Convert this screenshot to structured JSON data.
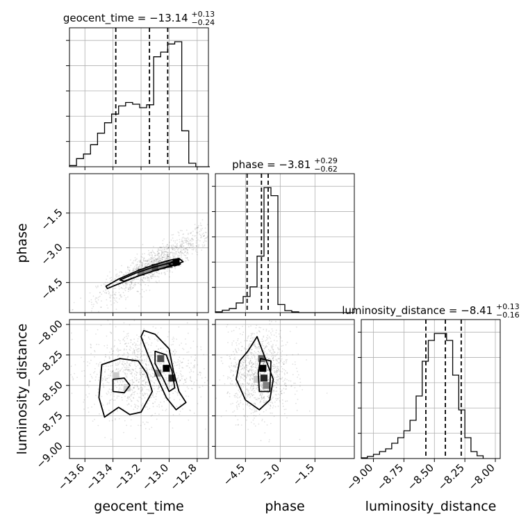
{
  "chart_data": {
    "type": "corner",
    "parameters": [
      "geocent_time",
      "phase",
      "luminosity_distance"
    ],
    "axis_labels": [
      "geocent_time",
      "phase",
      "luminosity_distance"
    ],
    "grid": true,
    "ranges": {
      "geocent_time": [
        -13.71,
        -12.72
      ],
      "phase": [
        -5.8,
        0.2
      ],
      "luminosity_distance": [
        -9.1,
        -7.96
      ]
    },
    "ticks": {
      "geocent_time": {
        "values": [
          -13.6,
          -13.4,
          -13.2,
          -13.0,
          -12.8
        ],
        "labels": [
          "−13.6",
          "−13.4",
          "−13.2",
          "−13.0",
          "−12.8"
        ]
      },
      "phase": {
        "values": [
          -4.5,
          -3.0,
          -1.5
        ],
        "labels": [
          "−4.5",
          "−3.0",
          "−1.5"
        ]
      },
      "luminosity_distance": {
        "values": [
          -9.0,
          -8.75,
          -8.5,
          -8.25,
          -8.0
        ],
        "labels": [
          "−9.00",
          "−8.75",
          "−8.50",
          "−8.25",
          "−8.00"
        ]
      }
    },
    "titles": [
      {
        "name": "geocent_time",
        "median": "−13.14",
        "plus": "+0.13",
        "minus": "−0.24"
      },
      {
        "name": "phase",
        "median": "−3.81",
        "plus": "+0.29",
        "minus": "−0.62"
      },
      {
        "name": "luminosity_distance",
        "median": "−8.41",
        "plus": "+0.13",
        "minus": "−0.16"
      }
    ],
    "quantiles": {
      "geocent_time": [
        -13.38,
        -13.14,
        -13.01
      ],
      "phase": [
        -4.43,
        -3.81,
        -3.52
      ],
      "luminosity_distance": [
        -8.57,
        -8.41,
        -8.28
      ]
    },
    "histograms": {
      "geocent_time": {
        "edges": [
          -13.71,
          -13.66,
          -13.61,
          -13.56,
          -13.51,
          -13.46,
          -13.41,
          -13.36,
          -13.31,
          -13.26,
          -13.21,
          -13.16,
          -13.11,
          -13.06,
          -13.01,
          -12.96,
          -12.91,
          -12.86,
          -12.81,
          -12.76,
          -12.71
        ],
        "counts": [
          2,
          14,
          22,
          38,
          58,
          76,
          91,
          105,
          111,
          108,
          102,
          107,
          190,
          198,
          212,
          216,
          62,
          6,
          0,
          0
        ]
      },
      "phase": {
        "edges": [
          -5.8,
          -5.5,
          -5.2,
          -4.9,
          -4.6,
          -4.3,
          -4.0,
          -3.7,
          -3.4,
          -3.1,
          -2.8,
          -2.5,
          -2.2,
          -1.9,
          -1.6,
          -1.3,
          -1.0,
          -0.7,
          -0.4,
          -0.1,
          0.2
        ],
        "counts": [
          2,
          6,
          10,
          24,
          40,
          64,
          140,
          310,
          290,
          20,
          5,
          2,
          0,
          0,
          0,
          0,
          0,
          0,
          0,
          0
        ]
      },
      "luminosity_distance": {
        "edges": [
          -9.1,
          -9.05,
          -9.0,
          -8.95,
          -8.9,
          -8.85,
          -8.8,
          -8.75,
          -8.7,
          -8.65,
          -8.6,
          -8.55,
          -8.5,
          -8.45,
          -8.4,
          -8.35,
          -8.3,
          -8.25,
          -8.2,
          -8.15,
          -8.1
        ],
        "counts": [
          1,
          3,
          6,
          10,
          14,
          22,
          30,
          40,
          55,
          90,
          140,
          170,
          180,
          180,
          170,
          120,
          70,
          30,
          10,
          4
        ]
      }
    },
    "pairs": [
      {
        "x": "geocent_time",
        "y": "phase",
        "scatter": {
          "x_range": [
            -13.7,
            -12.78
          ],
          "slope": 3.5,
          "center": [
            -13.1,
            -3.7
          ],
          "spread": 0.35
        },
        "contours": [
          [
            [
              -13.45,
              -4.66
            ],
            [
              -13.36,
              -4.35
            ],
            [
              -13.22,
              -3.98
            ],
            [
              -13.1,
              -3.72
            ],
            [
              -13.0,
              -3.54
            ],
            [
              -12.93,
              -3.46
            ],
            [
              -12.9,
              -3.6
            ],
            [
              -12.98,
              -3.78
            ],
            [
              -13.1,
              -3.98
            ],
            [
              -13.22,
              -4.22
            ],
            [
              -13.36,
              -4.56
            ],
            [
              -13.44,
              -4.76
            ]
          ],
          [
            [
              -13.35,
              -4.39
            ],
            [
              -13.24,
              -4.1
            ],
            [
              -13.12,
              -3.85
            ],
            [
              -13.0,
              -3.66
            ],
            [
              -12.94,
              -3.6
            ],
            [
              -12.96,
              -3.72
            ],
            [
              -13.1,
              -3.98
            ],
            [
              -13.22,
              -4.22
            ],
            [
              -13.32,
              -4.44
            ]
          ],
          [
            [
              -13.0,
              -3.72
            ],
            [
              -12.98,
              -3.6
            ],
            [
              -12.94,
              -3.6
            ],
            [
              -12.92,
              -3.7
            ],
            [
              -12.96,
              -3.78
            ]
          ]
        ],
        "hist2d": [
          {
            "x": -13.2,
            "y": -4.05,
            "density": 0.55
          },
          {
            "x": -13.15,
            "y": -3.95,
            "density": 0.45
          },
          {
            "x": -13.1,
            "y": -3.85,
            "density": 0.7
          },
          {
            "x": -13.05,
            "y": -3.78,
            "density": 0.5
          },
          {
            "x": -13.0,
            "y": -3.72,
            "density": 0.6
          },
          {
            "x": -12.95,
            "y": -3.62,
            "density": 1.0
          }
        ]
      },
      {
        "x": "geocent_time",
        "y": "luminosity_distance",
        "scatter": {
          "x_range": [
            -13.7,
            -12.78
          ],
          "slope": 0,
          "center": [
            -13.2,
            -8.4
          ],
          "spread": 0.18
        },
        "contours": [
          [
            [
              -13.48,
              -8.33
            ],
            [
              -13.35,
              -8.28
            ],
            [
              -13.22,
              -8.3
            ],
            [
              -13.16,
              -8.4
            ],
            [
              -13.12,
              -8.55
            ],
            [
              -13.2,
              -8.72
            ],
            [
              -13.28,
              -8.74
            ],
            [
              -13.36,
              -8.68
            ],
            [
              -13.46,
              -8.76
            ],
            [
              -13.5,
              -8.6
            ]
          ],
          [
            [
              -13.4,
              -8.45
            ],
            [
              -13.32,
              -8.44
            ],
            [
              -13.28,
              -8.5
            ],
            [
              -13.32,
              -8.56
            ],
            [
              -13.4,
              -8.55
            ]
          ],
          [
            [
              -13.18,
              -8.05
            ],
            [
              -13.1,
              -8.08
            ],
            [
              -13.0,
              -8.2
            ],
            [
              -12.97,
              -8.38
            ],
            [
              -12.93,
              -8.55
            ],
            [
              -12.88,
              -8.64
            ],
            [
              -12.95,
              -8.7
            ],
            [
              -13.02,
              -8.6
            ],
            [
              -13.08,
              -8.45
            ],
            [
              -13.15,
              -8.25
            ],
            [
              -13.2,
              -8.1
            ]
          ],
          [
            [
              -13.1,
              -8.22
            ],
            [
              -13.02,
              -8.25
            ],
            [
              -12.98,
              -8.38
            ],
            [
              -12.96,
              -8.52
            ],
            [
              -13.0,
              -8.55
            ],
            [
              -13.04,
              -8.45
            ],
            [
              -13.1,
              -8.32
            ]
          ]
        ],
        "hist2d": [
          {
            "x": -13.06,
            "y": -8.28,
            "density": 0.7
          },
          {
            "x": -13.02,
            "y": -8.36,
            "density": 1.0
          },
          {
            "x": -12.98,
            "y": -8.44,
            "density": 0.85
          },
          {
            "x": -13.08,
            "y": -8.4,
            "density": 0.45
          },
          {
            "x": -13.38,
            "y": -8.42,
            "density": 0.2
          },
          {
            "x": -13.3,
            "y": -8.52,
            "density": 0.18
          }
        ]
      },
      {
        "x": "phase",
        "y": "luminosity_distance",
        "scatter": {
          "x_range": [
            -5.6,
            -2.5
          ],
          "slope": 0,
          "center": [
            -3.9,
            -8.4
          ],
          "spread": 0.18
        },
        "contours": [
          [
            [
              -4.0,
              -8.1
            ],
            [
              -3.6,
              -8.3
            ],
            [
              -3.3,
              -8.45
            ],
            [
              -3.45,
              -8.62
            ],
            [
              -3.9,
              -8.7
            ],
            [
              -4.5,
              -8.62
            ],
            [
              -4.9,
              -8.45
            ],
            [
              -4.75,
              -8.3
            ],
            [
              -4.4,
              -8.22
            ]
          ],
          [
            [
              -3.85,
              -8.28
            ],
            [
              -3.4,
              -8.3
            ],
            [
              -3.45,
              -8.55
            ],
            [
              -3.9,
              -8.55
            ],
            [
              -3.95,
              -8.4
            ]
          ]
        ],
        "hist2d": [
          {
            "x": -3.8,
            "y": -8.28,
            "density": 0.6
          },
          {
            "x": -3.75,
            "y": -8.36,
            "density": 1.0
          },
          {
            "x": -3.7,
            "y": -8.44,
            "density": 0.85
          },
          {
            "x": -3.6,
            "y": -8.5,
            "density": 0.5
          },
          {
            "x": -4.0,
            "y": -8.45,
            "density": 0.2
          }
        ]
      }
    ]
  }
}
